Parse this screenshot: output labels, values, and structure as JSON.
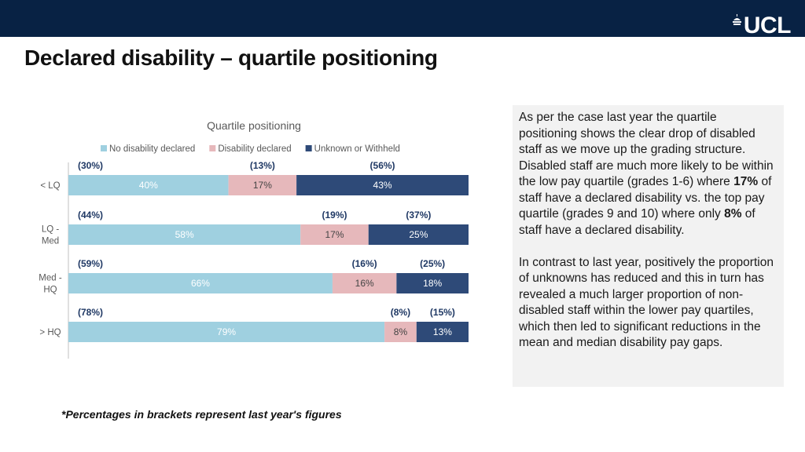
{
  "header": {
    "logo_text": "UCL",
    "title": "Declared disability – quartile positioning",
    "bar_color": "#082244"
  },
  "chart_data": {
    "type": "bar",
    "orientation": "horizontal",
    "stacked": true,
    "title": "Quartile positioning",
    "legend_position": "top",
    "categories": [
      "< LQ",
      "LQ - Med",
      "Med - HQ",
      "> HQ"
    ],
    "category_lines": [
      [
        "< LQ"
      ],
      [
        "LQ -",
        "Med"
      ],
      [
        "Med -",
        "HQ"
      ],
      [
        "> HQ"
      ]
    ],
    "series": [
      {
        "name": "No disability declared",
        "color": "#9fd0e0",
        "values": [
          40,
          58,
          66,
          79
        ],
        "labels": [
          "40%",
          "58%",
          "66%",
          "79%"
        ],
        "previous": [
          30,
          44,
          59,
          78
        ],
        "previous_labels": [
          "(30%)",
          "(44%)",
          "(59%)",
          "(78%)"
        ],
        "label_color": "#ffffff"
      },
      {
        "name": "Disability declared",
        "color": "#e6b8bb",
        "values": [
          17,
          17,
          16,
          8
        ],
        "labels": [
          "17%",
          "17%",
          "16%",
          "8%"
        ],
        "previous": [
          13,
          19,
          16,
          8
        ],
        "previous_labels": [
          "(13%)",
          "(19%)",
          "(16%)",
          "(8%)"
        ],
        "label_color": "#444444"
      },
      {
        "name": "Unknown or Withheld",
        "color": "#2e4a78",
        "values": [
          43,
          25,
          18,
          13
        ],
        "labels": [
          "43%",
          "25%",
          "18%",
          "13%"
        ],
        "previous": [
          56,
          37,
          25,
          15
        ],
        "previous_labels": [
          "(56%)",
          "(37%)",
          "(25%)",
          "(15%)"
        ],
        "label_color": "#ffffff"
      }
    ],
    "xlim": [
      0,
      100
    ],
    "grid": false,
    "previous_label_color": "#1f3864"
  },
  "text_panel": {
    "paragraph1": {
      "part1": "As per the case last year the quartile positioning shows the clear drop of disabled staff as we move up the grading structure. Disabled staff are much more likely to be within the low pay quartile (grades 1-6) where ",
      "bold1": "17%",
      "part2": " of staff have a declared disability vs. the top pay quartile (grades 9 and 10) where only ",
      "bold2": "8%",
      "part3": " of staff have a declared disability."
    },
    "paragraph2": "In contrast to last year, positively the proportion of unknowns has reduced and this in turn has revealed a much larger proportion of non-disabled staff within the lower pay quartiles, which then led to significant reductions in the mean and median disability pay gaps."
  },
  "footnote": "*Percentages in brackets represent last year's figures"
}
